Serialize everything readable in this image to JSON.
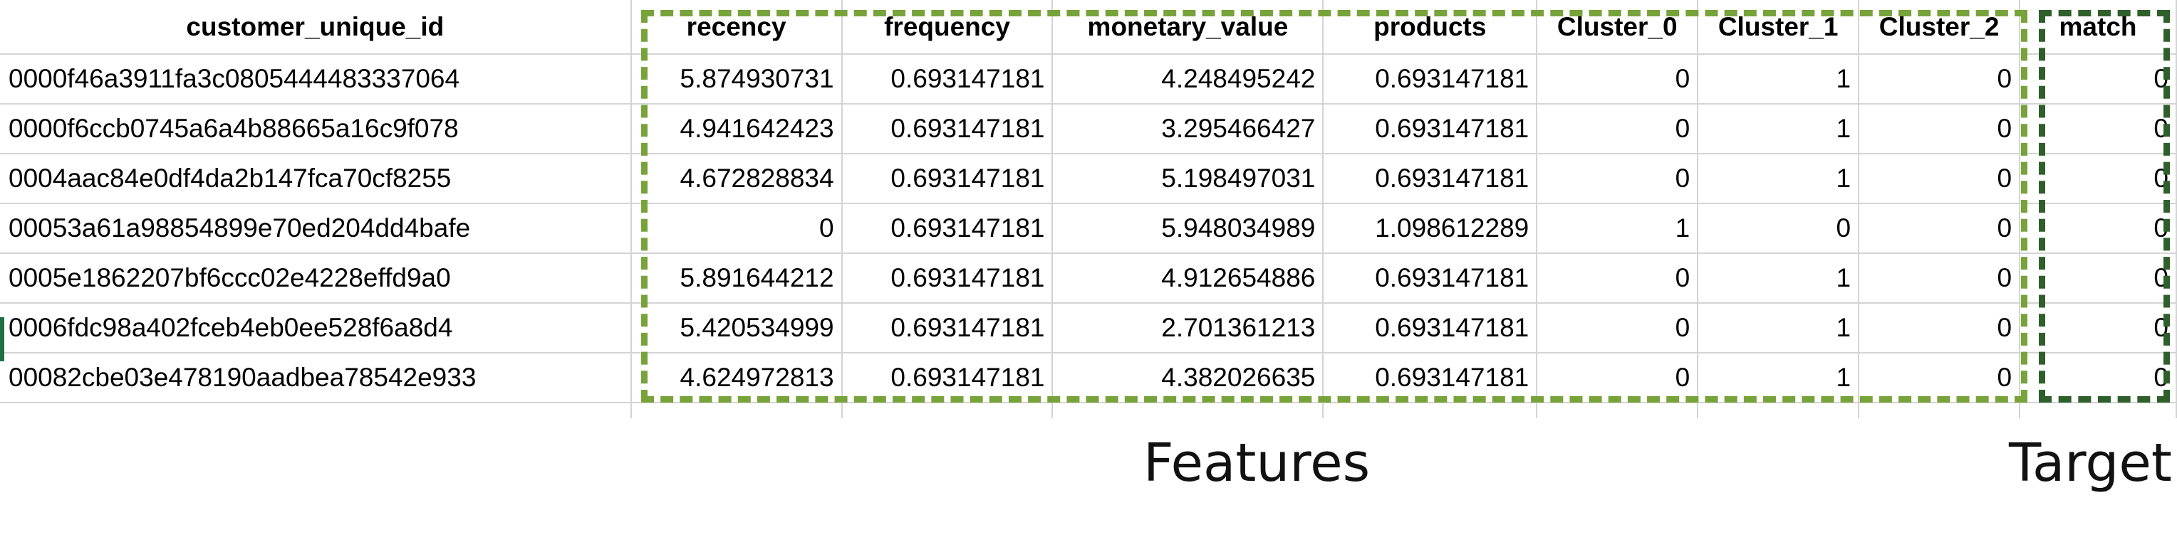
{
  "table": {
    "headers": [
      "customer_unique_id",
      "recency",
      "frequency",
      "monetary_value",
      "products",
      "Cluster_0",
      "Cluster_1",
      "Cluster_2",
      "match"
    ],
    "rows": [
      [
        "0000f46a3911fa3c0805444483337064",
        "5.874930731",
        "0.693147181",
        "4.248495242",
        "0.693147181",
        "0",
        "1",
        "0",
        "0"
      ],
      [
        "0000f6ccb0745a6a4b88665a16c9f078",
        "4.941642423",
        "0.693147181",
        "3.295466427",
        "0.693147181",
        "0",
        "1",
        "0",
        "0"
      ],
      [
        "0004aac84e0df4da2b147fca70cf8255",
        "4.672828834",
        "0.693147181",
        "5.198497031",
        "0.693147181",
        "0",
        "1",
        "0",
        "0"
      ],
      [
        "00053a61a98854899e70ed204dd4bafe",
        "0",
        "0.693147181",
        "5.948034989",
        "1.098612289",
        "1",
        "0",
        "0",
        "0"
      ],
      [
        "0005e1862207bf6ccc02e4228effd9a0",
        "5.891644212",
        "0.693147181",
        "4.912654886",
        "0.693147181",
        "0",
        "1",
        "0",
        "0"
      ],
      [
        "0006fdc98a402fceb4eb0ee528f6a8d4",
        "5.420534999",
        "0.693147181",
        "2.701361213",
        "0.693147181",
        "0",
        "1",
        "0",
        "0"
      ],
      [
        "00082cbe03e478190aadbea78542e933",
        "4.624972813",
        "0.693147181",
        "4.382026635",
        "0.693147181",
        "0",
        "1",
        "0",
        "0"
      ]
    ]
  },
  "annotations": {
    "features_label": "Features",
    "target_label": "Target",
    "features_color": "#77a33a",
    "target_color": "#2f5f2a"
  }
}
